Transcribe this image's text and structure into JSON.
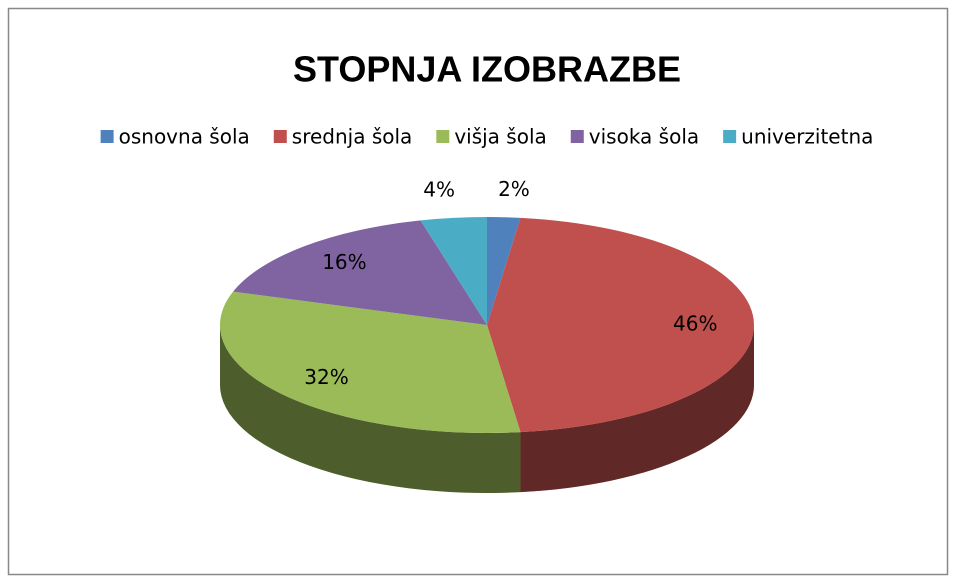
{
  "chart_data": {
    "type": "pie",
    "title": "STOPNJA IZOBRAZBE",
    "categories": [
      "osnovna šola",
      "srednja šola",
      "višja šola",
      "visoka šola",
      "univerzitetna"
    ],
    "values": [
      2,
      46,
      32,
      16,
      4
    ],
    "value_labels": [
      "2%",
      "46%",
      "32%",
      "16%",
      "4%"
    ],
    "colors": [
      "#4f81bd",
      "#c0504d",
      "#9bbb59",
      "#8064a2",
      "#4bacc6"
    ],
    "legend": "top"
  }
}
